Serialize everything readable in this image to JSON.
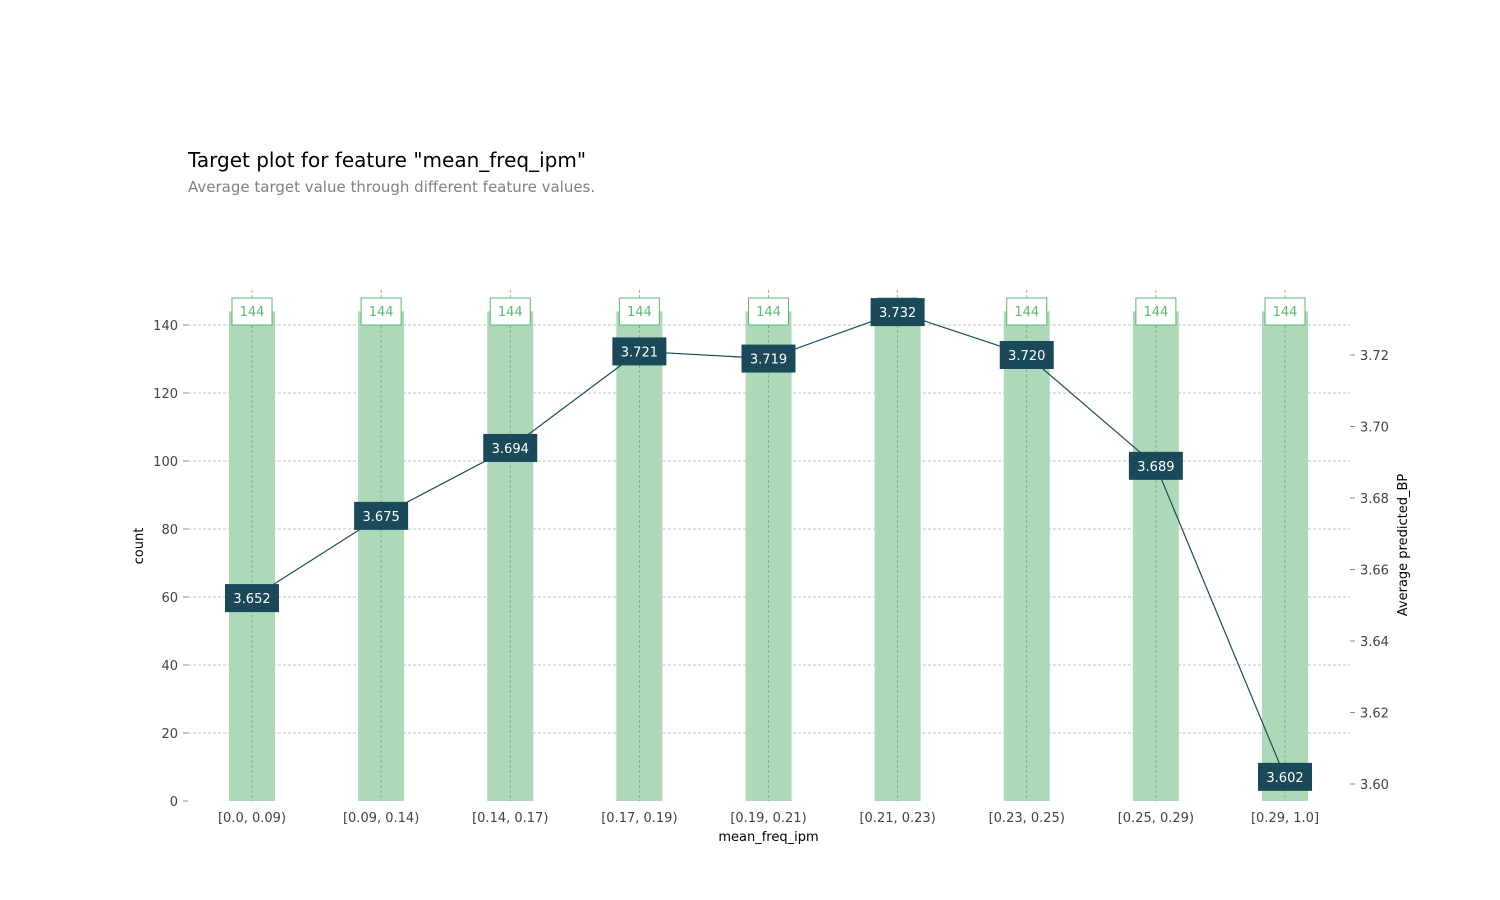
{
  "title": "Target plot for feature \"mean_freq_ipm\"",
  "subtitle": "Average target value through different feature values.",
  "chart_data": {
    "type": "bar",
    "categories": [
      "[0.0, 0.09)",
      "[0.09, 0.14)",
      "[0.14, 0.17)",
      "[0.17, 0.19)",
      "[0.19, 0.21)",
      "[0.21, 0.23)",
      "[0.23, 0.25)",
      "[0.25, 0.29)",
      "[0.29, 1.0]"
    ],
    "xlabel": "mean_freq_ipm",
    "ylabel": "count",
    "y2label": "Average predicted_BP",
    "ylim": [
      0,
      150
    ],
    "yticks": [
      0,
      20,
      40,
      60,
      80,
      100,
      120,
      140
    ],
    "y2lim": [
      3.5955,
      3.735
    ],
    "y2ticks": [
      3.6,
      3.62,
      3.64,
      3.66,
      3.68,
      3.7,
      3.72
    ],
    "series": [
      {
        "type": "bar",
        "values": [
          144,
          144,
          144,
          144,
          144,
          144,
          144,
          144,
          144
        ],
        "labels": [
          "144",
          "144",
          "144",
          "144",
          "144",
          "144",
          "144",
          "144",
          "144"
        ],
        "color": "#add9b8",
        "label_border_color": "#5cb870"
      },
      {
        "type": "line",
        "axis": "right",
        "values": [
          3.652,
          3.675,
          3.694,
          3.721,
          3.719,
          3.732,
          3.72,
          3.689,
          3.602
        ],
        "labels": [
          "3.652",
          "3.675",
          "3.694",
          "3.721",
          "3.719",
          "3.732",
          "3.720",
          "3.689",
          "3.602"
        ],
        "color": "#1a4a5a"
      }
    ],
    "grid": true
  }
}
